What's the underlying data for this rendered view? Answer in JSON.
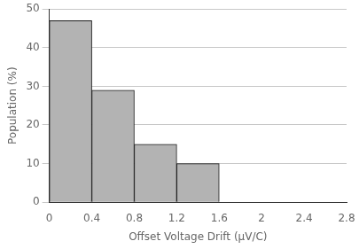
{
  "chart_data": {
    "type": "histogram",
    "bins": [
      0.0,
      0.4,
      0.8,
      1.2,
      1.6,
      2.0,
      2.4,
      2.8
    ],
    "values": [
      47,
      29,
      15,
      10,
      0,
      0,
      0
    ],
    "color": "#b3b3b3",
    "x_label": "Offset Voltage Drift (μV/C)",
    "y_label": "Population (%)",
    "xlim": [
      0,
      2.8
    ],
    "ylim": [
      0,
      50
    ],
    "xticks": [
      0,
      0.4,
      0.8,
      1.2,
      1.6,
      2,
      2.4,
      2.8
    ],
    "yticks": [
      0,
      10,
      20,
      30,
      40,
      50
    ],
    "grid": "y"
  }
}
